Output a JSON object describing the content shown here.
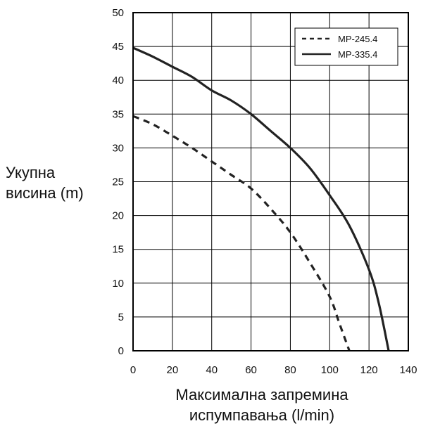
{
  "chart_data": {
    "type": "line",
    "title": "",
    "xlabel_lines": [
      "Максимална запремина",
      "испумпавања (l/min)"
    ],
    "ylabel_lines": [
      "Укупна",
      "висина (m)"
    ],
    "xlim": [
      0,
      140
    ],
    "ylim": [
      0,
      50
    ],
    "xticks": [
      0,
      20,
      40,
      60,
      80,
      100,
      120,
      140
    ],
    "yticks": [
      0,
      5,
      10,
      15,
      20,
      25,
      30,
      35,
      40,
      45,
      50
    ],
    "grid": true,
    "legend_position": "top-right",
    "series": [
      {
        "name": "MP-245.4",
        "style": "dashed",
        "color": "#222222",
        "x": [
          0,
          10,
          20,
          30,
          40,
          50,
          60,
          70,
          80,
          90,
          100,
          105,
          110
        ],
        "y": [
          34.7,
          33.5,
          31.8,
          30,
          28,
          26,
          24,
          21,
          17.5,
          13,
          8,
          4,
          0
        ]
      },
      {
        "name": "MP-335.4",
        "style": "solid",
        "color": "#222222",
        "x": [
          0,
          10,
          20,
          30,
          40,
          50,
          60,
          70,
          80,
          90,
          100,
          110,
          120,
          125,
          130
        ],
        "y": [
          44.8,
          43.5,
          42,
          40.5,
          38.5,
          37,
          35,
          32.5,
          30,
          27,
          23,
          18.5,
          12,
          7,
          0
        ]
      }
    ]
  }
}
